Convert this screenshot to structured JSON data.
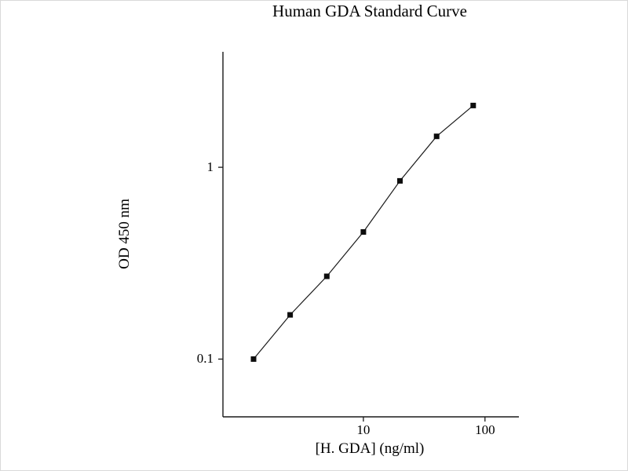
{
  "page": {
    "background": "#ffffff",
    "border_color": "#d9d9d9"
  },
  "chart_data": {
    "type": "line",
    "title": "Human GDA Standard Curve",
    "xlabel": "[H. GDA] (ng/ml)",
    "ylabel": "OD 450 nm",
    "x_scale": "log",
    "y_scale": "log",
    "xlim": [
      0.7,
      190
    ],
    "ylim": [
      0.05,
      4
    ],
    "x_ticks": [
      {
        "value": 10,
        "label": "10"
      },
      {
        "value": 100,
        "label": "100"
      }
    ],
    "y_ticks": [
      {
        "value": 0.1,
        "label": "0.1"
      },
      {
        "value": 1,
        "label": "1"
      }
    ],
    "grid": false,
    "legend": false,
    "marker": "square",
    "marker_size": 7,
    "axis_color": "#1a1a1a",
    "line_color": "#1a1a1a",
    "marker_color": "#0d0d0d",
    "series": [
      {
        "name": "Human GDA standard",
        "x": [
          1.25,
          2.5,
          5,
          10,
          20,
          40,
          80
        ],
        "y": [
          0.1,
          0.17,
          0.27,
          0.46,
          0.85,
          1.45,
          2.1
        ]
      }
    ]
  }
}
